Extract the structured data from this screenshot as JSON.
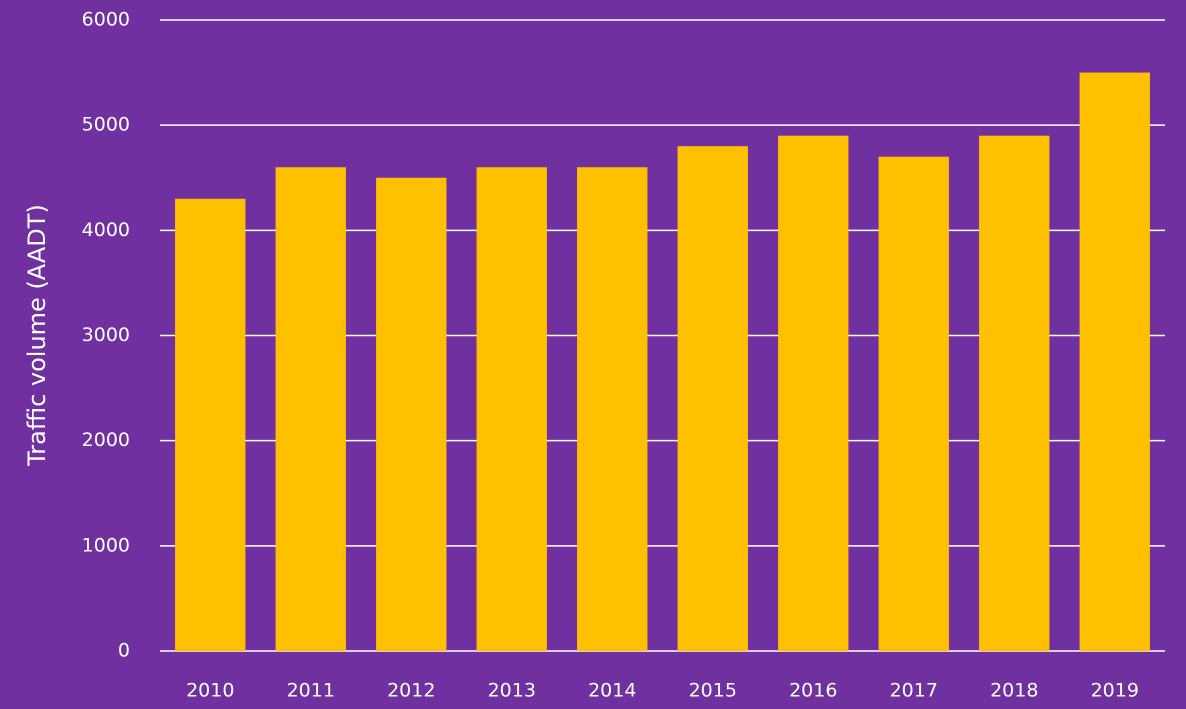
{
  "chart_data": {
    "type": "bar",
    "y_label": "Traffic volume (AADT)",
    "categories": [
      "2010",
      "2011",
      "2012",
      "2013",
      "2014",
      "2015",
      "2016",
      "2017",
      "2018",
      "2019"
    ],
    "values": [
      4300,
      4600,
      4500,
      4600,
      4600,
      4800,
      4900,
      4700,
      4900,
      5500
    ],
    "color": "#ffc000",
    "ylim": [
      0,
      6000
    ],
    "yticks": [
      0,
      1000,
      2000,
      3000,
      4000,
      5000,
      6000
    ],
    "grid": true
  }
}
